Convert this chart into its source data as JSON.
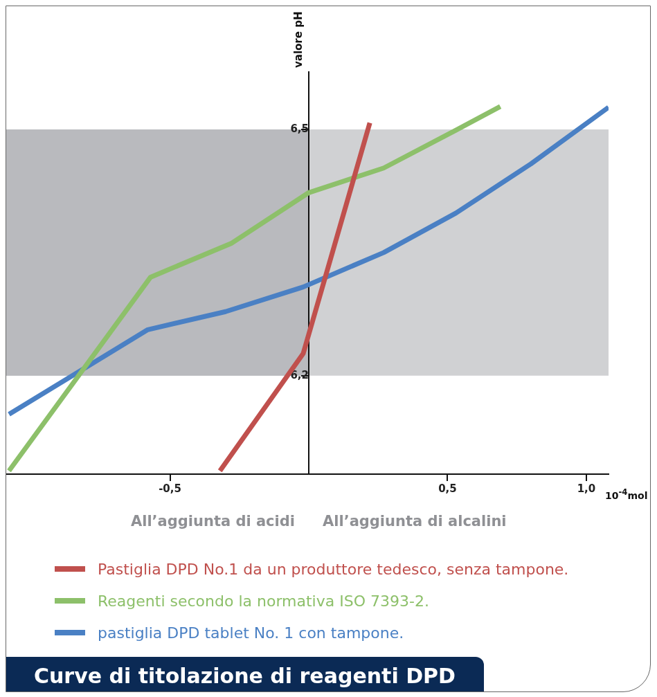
{
  "chart_data": {
    "type": "line",
    "title": "Curve di titolazione di reagenti DPD",
    "xlabel": "10$^{-4}$mol",
    "ylabel": "valore pH",
    "xlim": [
      -1.09,
      1.08
    ],
    "ylim": [
      6.08,
      6.57
    ],
    "xticks": [
      {
        "value": -0.5,
        "label": "-0,5"
      },
      {
        "value": 0.5,
        "label": "0,5"
      },
      {
        "value": 1,
        "label": "1,0"
      }
    ],
    "yticks": [
      {
        "value": 6.2,
        "label": "6,2"
      },
      {
        "value": 6.5,
        "label": "6,5"
      }
    ],
    "bands": [
      {
        "axis": "y",
        "from": 6.2,
        "to": 6.5,
        "color": "#d0d1d3"
      },
      {
        "axis": "x",
        "from": -1.09,
        "to": 0,
        "color": "#b9babe"
      }
    ],
    "annotations": [
      "All’aggiunta di acidi",
      "All’aggiunta di alcalini"
    ],
    "series": [
      {
        "name": "Pastiglia DPD No.1 da un produttore tedesco, senza tampone.",
        "color": "#c0504d",
        "x": [
          -0.32,
          -0.02,
          0.22
        ],
        "values": [
          6.084,
          6.227,
          6.508
        ]
      },
      {
        "name": "Reagenti secondo la normativa ISO 7393-2.",
        "color": "#8dc06a",
        "x": [
          -1.08,
          -0.57,
          -0.28,
          0,
          0.27,
          0.53,
          0.69
        ],
        "values": [
          6.084,
          6.32,
          6.361,
          6.423,
          6.453,
          6.499,
          6.528
        ]
      },
      {
        "name": "pastiglia DPD tablet No. 1 con tampone.",
        "color": "#4a80c4",
        "x": [
          -1.08,
          -0.58,
          -0.3,
          -0.02,
          0.27,
          0.53,
          0.8,
          1.08
        ],
        "values": [
          6.153,
          6.256,
          6.278,
          6.308,
          6.35,
          6.398,
          6.458,
          6.527
        ]
      }
    ],
    "legend": "bottom",
    "grid": false,
    "marker": "none",
    "line_style": "solid"
  }
}
